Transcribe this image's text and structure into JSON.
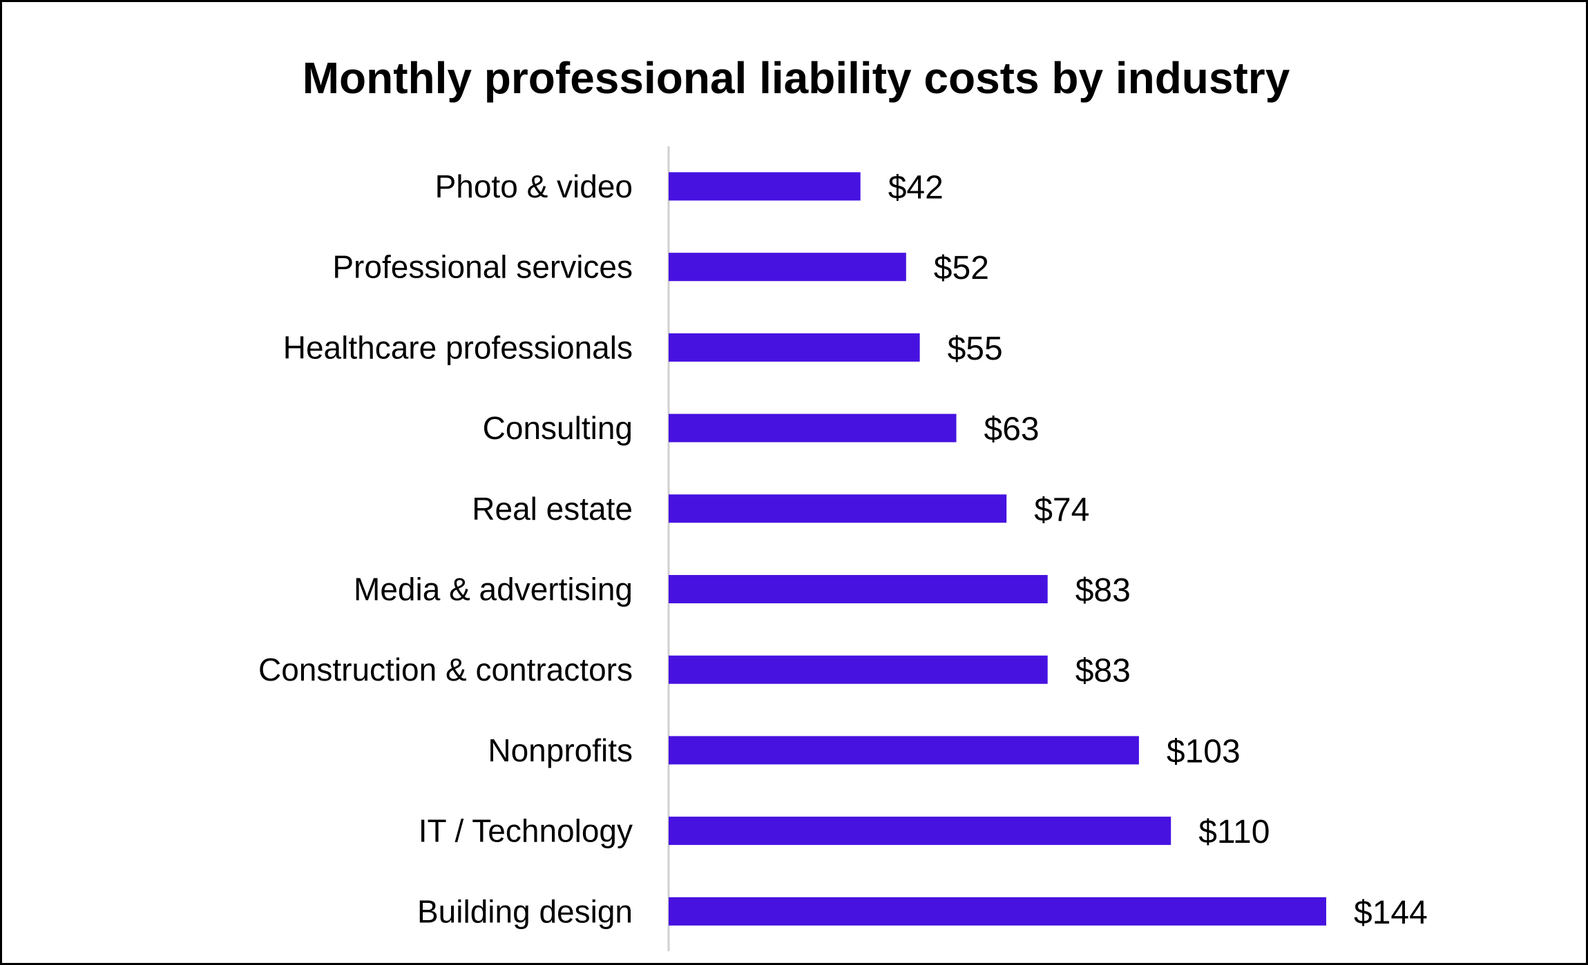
{
  "chart_data": {
    "type": "bar",
    "orientation": "horizontal",
    "title": "Monthly professional liability costs by industry",
    "categories": [
      "Photo & video",
      "Professional services",
      "Healthcare professionals",
      "Consulting",
      "Real estate",
      "Media & advertising",
      "Construction & contractors",
      "Nonprofits",
      "IT / Technology",
      "Building design"
    ],
    "values": [
      42,
      52,
      55,
      63,
      74,
      83,
      83,
      103,
      110,
      144
    ],
    "value_labels": [
      "$42",
      "$52",
      "$55",
      "$63",
      "$74",
      "$83",
      "$83",
      "$103",
      "$110",
      "$144"
    ],
    "xlim": [
      0,
      144
    ],
    "grid": false,
    "legend": "none",
    "bar_color": "#4712E0"
  }
}
